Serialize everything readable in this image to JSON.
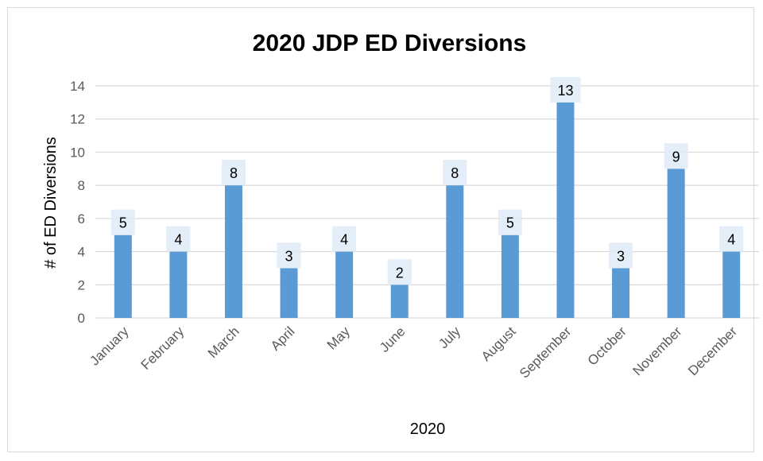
{
  "chart_data": {
    "type": "bar",
    "title": "2020 JDP ED Diversions",
    "xlabel": "2020",
    "ylabel": "# of ED Diversions",
    "categories": [
      "January",
      "February",
      "March",
      "April",
      "May",
      "June",
      "July",
      "August",
      "September",
      "October",
      "November",
      "December"
    ],
    "values": [
      5,
      4,
      8,
      3,
      4,
      2,
      8,
      5,
      13,
      3,
      9,
      4
    ],
    "ylim": [
      0,
      14
    ],
    "yticks": [
      0,
      2,
      4,
      6,
      8,
      10,
      12,
      14
    ],
    "grid": true,
    "legend": "none",
    "bar_color": "#5b9bd5",
    "gridline_color": "#d9d9d9",
    "label_box_color": "#deebf7"
  }
}
